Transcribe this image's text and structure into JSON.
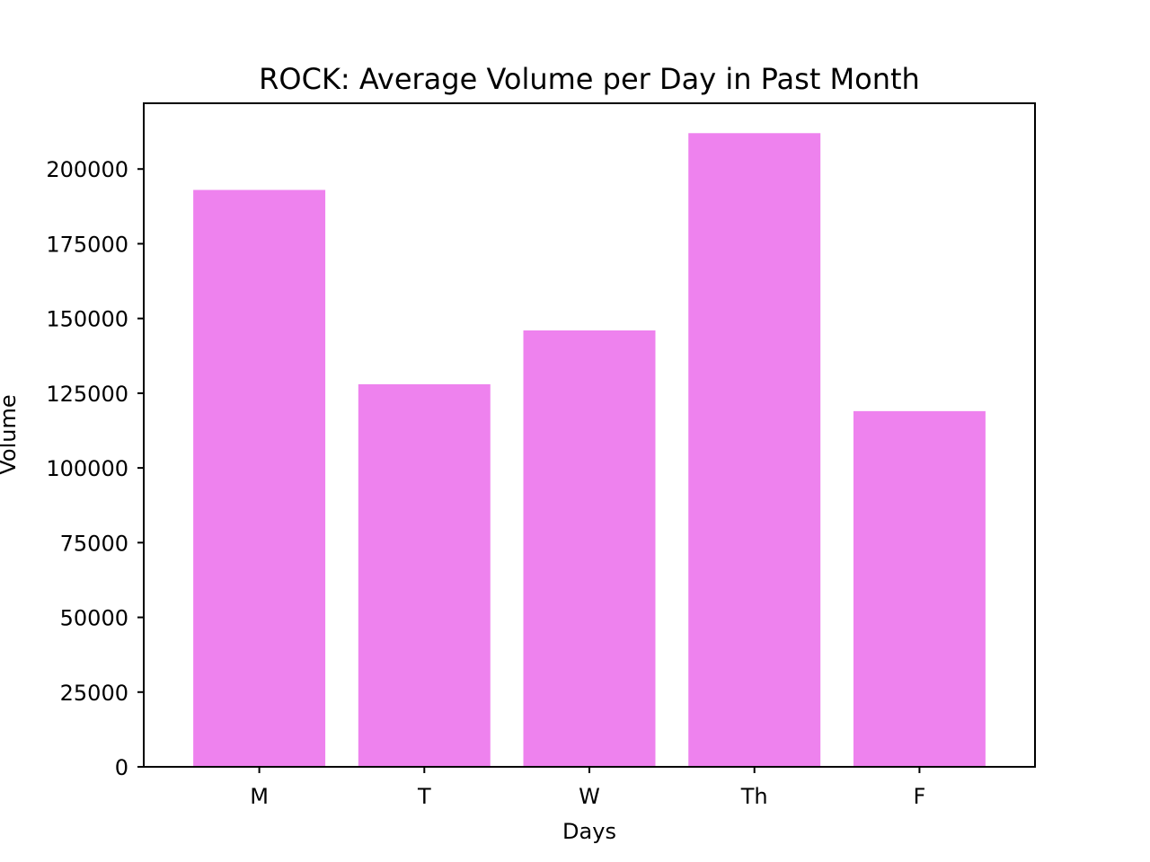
{
  "chart_data": {
    "type": "bar",
    "title": "ROCK: Average Volume per Day in Past Month",
    "xlabel": "Days",
    "ylabel": "Volume",
    "categories": [
      "M",
      "T",
      "W",
      "Th",
      "F"
    ],
    "values": [
      193000,
      128000,
      146000,
      212000,
      119000
    ],
    "ylim": [
      0,
      222000
    ],
    "yticks": [
      0,
      25000,
      50000,
      75000,
      100000,
      125000,
      150000,
      175000,
      200000
    ],
    "bar_color": "#ee82ee",
    "grid": false,
    "legend": "none"
  }
}
